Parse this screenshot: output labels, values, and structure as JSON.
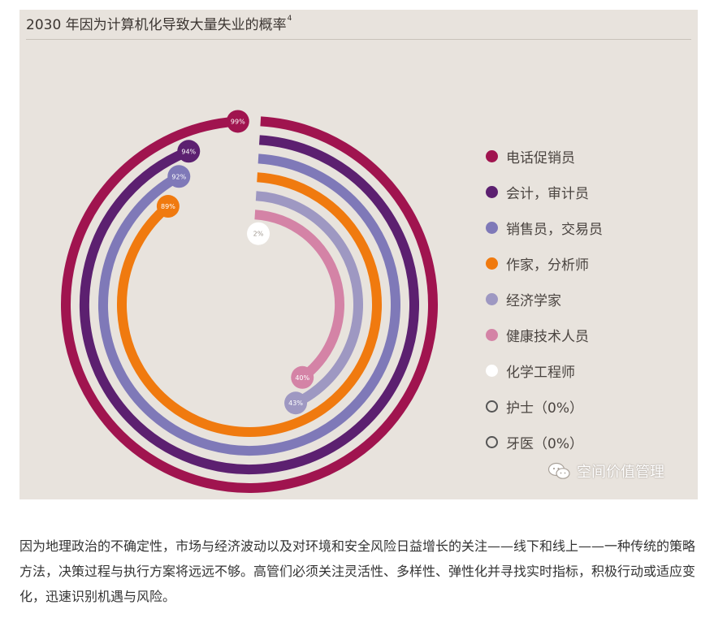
{
  "chart_data": {
    "type": "radial-bar",
    "title": "2030 年因为计算机化导致大量失业的概率",
    "title_note": "4",
    "unit": "%",
    "max": 100,
    "series": [
      {
        "name": "电话促销员",
        "value": 99,
        "label": "99%",
        "color": "#a0144f"
      },
      {
        "name": "会计，审计员",
        "value": 94,
        "label": "94%",
        "color": "#5c2070"
      },
      {
        "name": "销售员，交易员",
        "value": 92,
        "label": "92%",
        "color": "#7f79b8"
      },
      {
        "name": "作家，分析师",
        "value": 89,
        "label": "89%",
        "color": "#f07a0f"
      },
      {
        "name": "经济学家",
        "value": 43,
        "label": "43%",
        "color": "#9e98c2"
      },
      {
        "name": "健康技术人员",
        "value": 40,
        "label": "40%",
        "color": "#d483a6"
      },
      {
        "name": "化学工程师",
        "value": 2,
        "label": "2%",
        "color": "#ffffff"
      },
      {
        "name": "护士（0%）",
        "value": 0,
        "label": "",
        "color": "#ffffff"
      },
      {
        "name": "牙医（0%）",
        "value": 0,
        "label": "",
        "color": "#ffffff"
      }
    ]
  },
  "watermark": {
    "text": "空间价值管理"
  },
  "article": {
    "paragraph": "因为地理政治的不确定性，市场与经济波动以及对环境和安全风险日益增长的关注——线下和线上——一种传统的策略方法，决策过程与执行方案将远远不够。高管们必须关注灵活性、多样性、弹性化并寻找实时指标，积极行动或适应变化，迅速识别机遇与风险。"
  }
}
